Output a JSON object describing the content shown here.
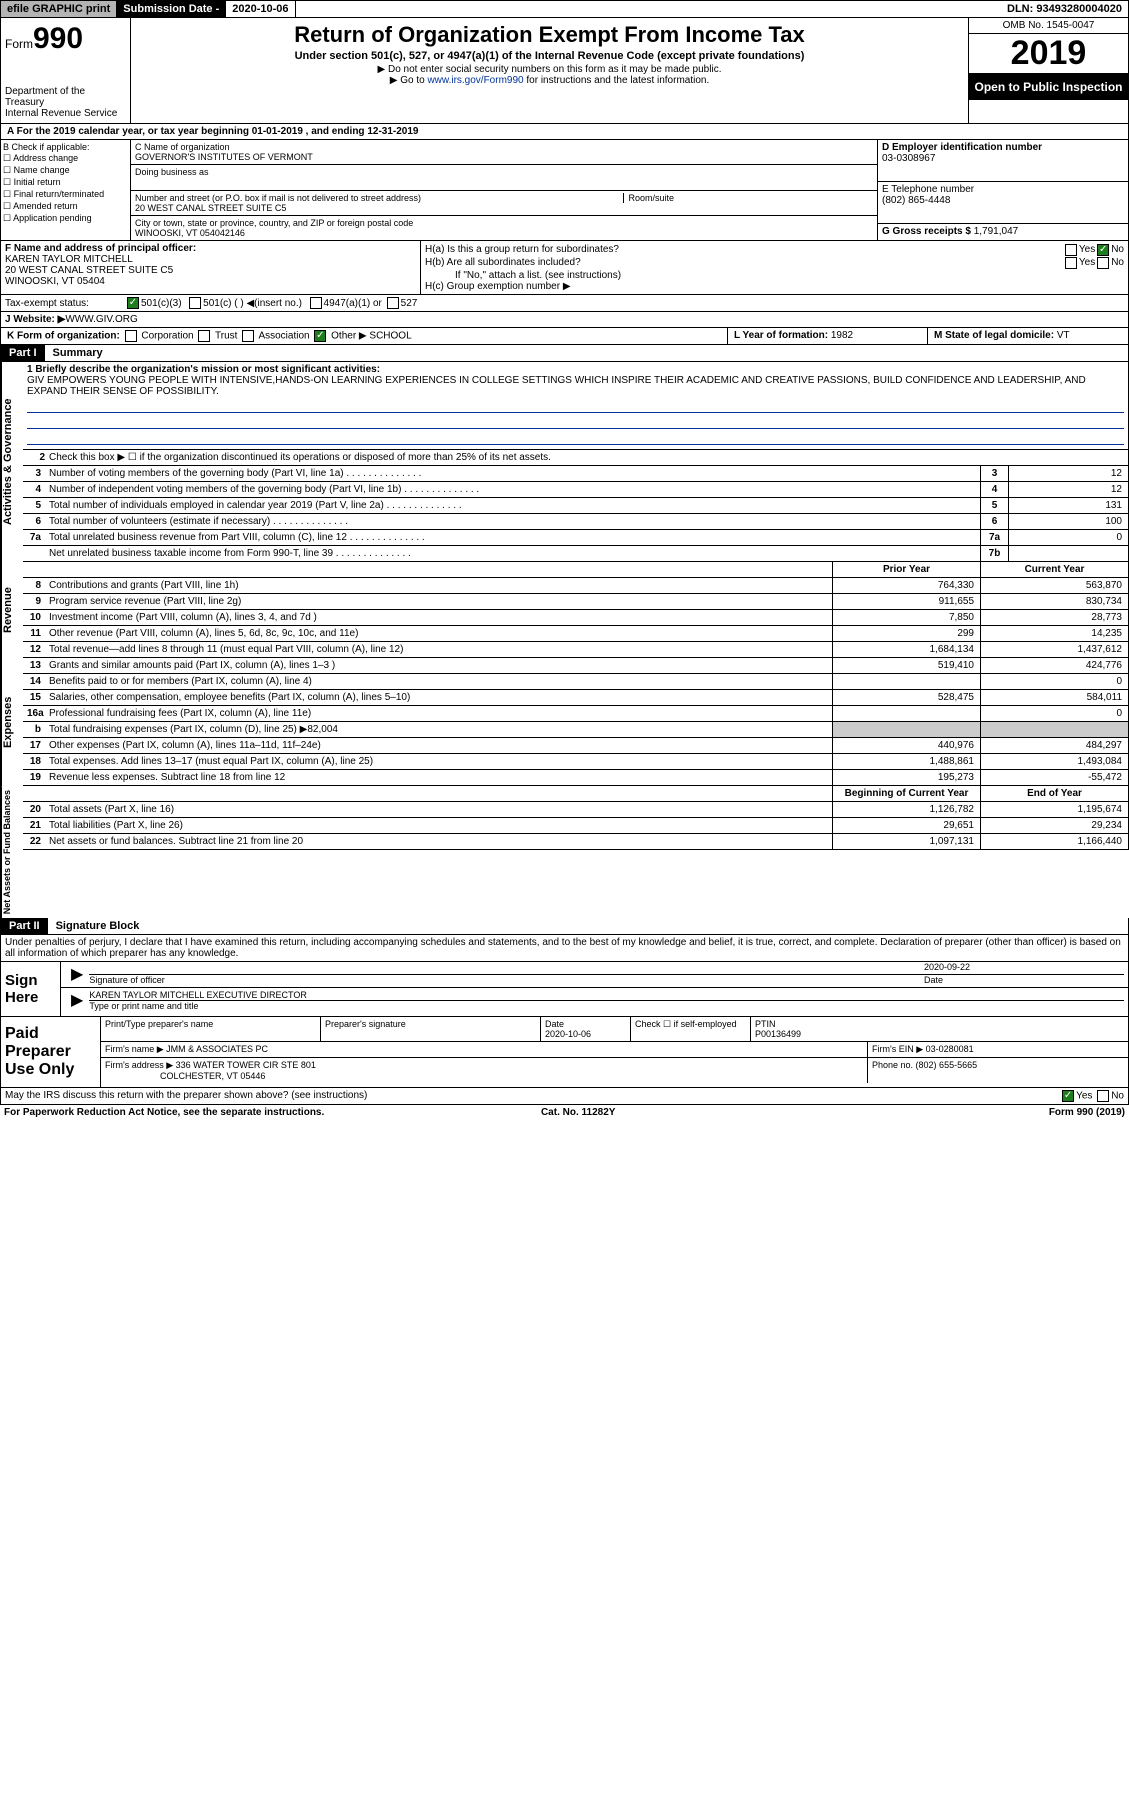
{
  "topbar": {
    "efile": "efile GRAPHIC print",
    "subdate_label": "Submission Date - ",
    "subdate_value": "2020-10-06",
    "dln": "DLN: 93493280004020"
  },
  "header": {
    "form_prefix": "Form",
    "form_number": "990",
    "dept": "Department of the Treasury\nInternal Revenue Service",
    "title": "Return of Organization Exempt From Income Tax",
    "sub1": "Under section 501(c), 527, or 4947(a)(1) of the Internal Revenue Code (except private foundations)",
    "sub2": "▶ Do not enter social security numbers on this form as it may be made public.",
    "sub3_pre": "▶ Go to ",
    "sub3_link": "www.irs.gov/Form990",
    "sub3_post": " for instructions and the latest information.",
    "omb": "OMB No. 1545-0047",
    "year": "2019",
    "open": "Open to Public Inspection"
  },
  "line_a": "A For the 2019 calendar year, or tax year beginning 01-01-2019    , and ending 12-31-2019",
  "b": {
    "label": "B Check if applicable:",
    "opts": [
      "Address change",
      "Name change",
      "Initial return",
      "Final return/terminated",
      "Amended return",
      "Application pending"
    ]
  },
  "c": {
    "name_label": "C Name of organization",
    "name": "GOVERNOR'S INSTITUTES OF VERMONT",
    "dba_label": "Doing business as",
    "street_label": "Number and street (or P.O. box if mail is not delivered to street address)",
    "roomsuite": "Room/suite",
    "street": "20 WEST CANAL STREET SUITE C5",
    "city_label": "City or town, state or province, country, and ZIP or foreign postal code",
    "city": "WINOOSKI, VT  054042146"
  },
  "d": {
    "label": "D Employer identification number",
    "value": "03-0308967"
  },
  "e": {
    "label": "E Telephone number",
    "value": "(802) 865-4448"
  },
  "g": {
    "label": "G Gross receipts $ ",
    "value": "1,791,047"
  },
  "f": {
    "label": "F  Name and address of principal officer:",
    "name": "KAREN TAYLOR MITCHELL",
    "addr1": "20 WEST CANAL STREET SUITE C5",
    "addr2": "WINOOSKI, VT  05404"
  },
  "h": {
    "a": "H(a)  Is this a group return for subordinates?",
    "b": "H(b)  Are all subordinates included?",
    "note": "If \"No,\" attach a list. (see instructions)",
    "c": "H(c)  Group exemption number ▶"
  },
  "status": {
    "label": "Tax-exempt status:",
    "opt1": "501(c)(3)",
    "opt2": "501(c) (  ) ◀(insert no.)",
    "opt3": "4947(a)(1) or",
    "opt4": "527"
  },
  "website": {
    "label": "J   Website: ▶  ",
    "value": "WWW.GIV.ORG"
  },
  "k": {
    "label": "K Form of organization:",
    "opts": [
      "Corporation",
      "Trust",
      "Association",
      "Other ▶"
    ],
    "other_val": "SCHOOL"
  },
  "l": {
    "label": "L Year of formation: ",
    "value": "1982"
  },
  "m": {
    "label": "M State of legal domicile: ",
    "value": "VT"
  },
  "parts": {
    "p1": "Part I",
    "p1_title": "Summary",
    "p2": "Part II",
    "p2_title": "Signature Block"
  },
  "sidelabels": {
    "ag": "Activities & Governance",
    "rev": "Revenue",
    "exp": "Expenses",
    "net": "Net Assets or Fund Balances"
  },
  "summary": {
    "q1": "1  Briefly describe the organization's mission or most significant activities:",
    "mission": "GIV EMPOWERS YOUNG PEOPLE WITH INTENSIVE,HANDS-ON LEARNING EXPERIENCES IN COLLEGE SETTINGS WHICH INSPIRE THEIR ACADEMIC AND CREATIVE PASSIONS, BUILD CONFIDENCE AND LEADERSHIP, AND EXPAND THEIR SENSE OF POSSIBILITY.",
    "q2": "Check this box ▶ ☐  if the organization discontinued its operations or disposed of more than 25% of its net assets.",
    "rows_ag": [
      {
        "n": "3",
        "d": "Number of voting members of the governing body (Part VI, line 1a)",
        "b": "3",
        "v": "12"
      },
      {
        "n": "4",
        "d": "Number of independent voting members of the governing body (Part VI, line 1b)",
        "b": "4",
        "v": "12"
      },
      {
        "n": "5",
        "d": "Total number of individuals employed in calendar year 2019 (Part V, line 2a)",
        "b": "5",
        "v": "131"
      },
      {
        "n": "6",
        "d": "Total number of volunteers (estimate if necessary)",
        "b": "6",
        "v": "100"
      },
      {
        "n": "7a",
        "d": "Total unrelated business revenue from Part VIII, column (C), line 12",
        "b": "7a",
        "v": "0"
      },
      {
        "n": "",
        "d": "Net unrelated business taxable income from Form 990-T, line 39",
        "b": "7b",
        "v": ""
      }
    ],
    "col_prior": "Prior Year",
    "col_current": "Current Year",
    "col_begin": "Beginning of Current Year",
    "col_end": "End of Year",
    "rows_rev": [
      {
        "n": "8",
        "d": "Contributions and grants (Part VIII, line 1h)",
        "v1": "764,330",
        "v2": "563,870"
      },
      {
        "n": "9",
        "d": "Program service revenue (Part VIII, line 2g)",
        "v1": "911,655",
        "v2": "830,734"
      },
      {
        "n": "10",
        "d": "Investment income (Part VIII, column (A), lines 3, 4, and 7d )",
        "v1": "7,850",
        "v2": "28,773"
      },
      {
        "n": "11",
        "d": "Other revenue (Part VIII, column (A), lines 5, 6d, 8c, 9c, 10c, and 11e)",
        "v1": "299",
        "v2": "14,235"
      },
      {
        "n": "12",
        "d": "Total revenue—add lines 8 through 11 (must equal Part VIII, column (A), line 12)",
        "v1": "1,684,134",
        "v2": "1,437,612"
      }
    ],
    "rows_exp": [
      {
        "n": "13",
        "d": "Grants and similar amounts paid (Part IX, column (A), lines 1–3 )",
        "v1": "519,410",
        "v2": "424,776"
      },
      {
        "n": "14",
        "d": "Benefits paid to or for members (Part IX, column (A), line 4)",
        "v1": "",
        "v2": "0"
      },
      {
        "n": "15",
        "d": "Salaries, other compensation, employee benefits (Part IX, column (A), lines 5–10)",
        "v1": "528,475",
        "v2": "584,011"
      },
      {
        "n": "16a",
        "d": "Professional fundraising fees (Part IX, column (A), line 11e)",
        "v1": "",
        "v2": "0"
      },
      {
        "n": "b",
        "d": "Total fundraising expenses (Part IX, column (D), line 25) ▶82,004",
        "v1": "shade",
        "v2": "shade"
      },
      {
        "n": "17",
        "d": "Other expenses (Part IX, column (A), lines 11a–11d, 11f–24e)",
        "v1": "440,976",
        "v2": "484,297"
      },
      {
        "n": "18",
        "d": "Total expenses. Add lines 13–17 (must equal Part IX, column (A), line 25)",
        "v1": "1,488,861",
        "v2": "1,493,084"
      },
      {
        "n": "19",
        "d": "Revenue less expenses. Subtract line 18 from line 12",
        "v1": "195,273",
        "v2": "-55,472"
      }
    ],
    "rows_net": [
      {
        "n": "20",
        "d": "Total assets (Part X, line 16)",
        "v1": "1,126,782",
        "v2": "1,195,674"
      },
      {
        "n": "21",
        "d": "Total liabilities (Part X, line 26)",
        "v1": "29,651",
        "v2": "29,234"
      },
      {
        "n": "22",
        "d": "Net assets or fund balances. Subtract line 21 from line 20",
        "v1": "1,097,131",
        "v2": "1,166,440"
      }
    ]
  },
  "penalty": "Under penalties of perjury, I declare that I have examined this return, including accompanying schedules and statements, and to the best of my knowledge and belief, it is true, correct, and complete. Declaration of preparer (other than officer) is based on all information of which preparer has any knowledge.",
  "sign": {
    "label": "Sign Here",
    "sig_label": "Signature of officer",
    "date_label": "Date",
    "date": "2020-09-22",
    "name": "KAREN TAYLOR MITCHELL  EXECUTIVE DIRECTOR",
    "name_label": "Type or print name and title"
  },
  "preparer": {
    "label": "Paid Preparer Use Only",
    "h1": "Print/Type preparer's name",
    "h2": "Preparer's signature",
    "h3": "Date",
    "date": "2020-10-06",
    "h4": "Check ☐ if self-employed",
    "h5": "PTIN",
    "ptin": "P00136499",
    "firm_label": "Firm's name     ▶ ",
    "firm": "JMM & ASSOCIATES PC",
    "ein_label": "Firm's EIN ▶ ",
    "ein": "03-0280081",
    "addr_label": "Firm's address ▶ ",
    "addr1": "336 WATER TOWER CIR STE 801",
    "addr2": "COLCHESTER, VT  05446",
    "phone_label": "Phone no. ",
    "phone": "(802) 655-5665"
  },
  "footer": {
    "discuss": "May the IRS discuss this return with the preparer shown above? (see instructions)",
    "yes": "Yes",
    "no": "No",
    "paperwork": "For Paperwork Reduction Act Notice, see the separate instructions.",
    "cat": "Cat. No. 11282Y",
    "form": "Form 990 (2019)"
  }
}
